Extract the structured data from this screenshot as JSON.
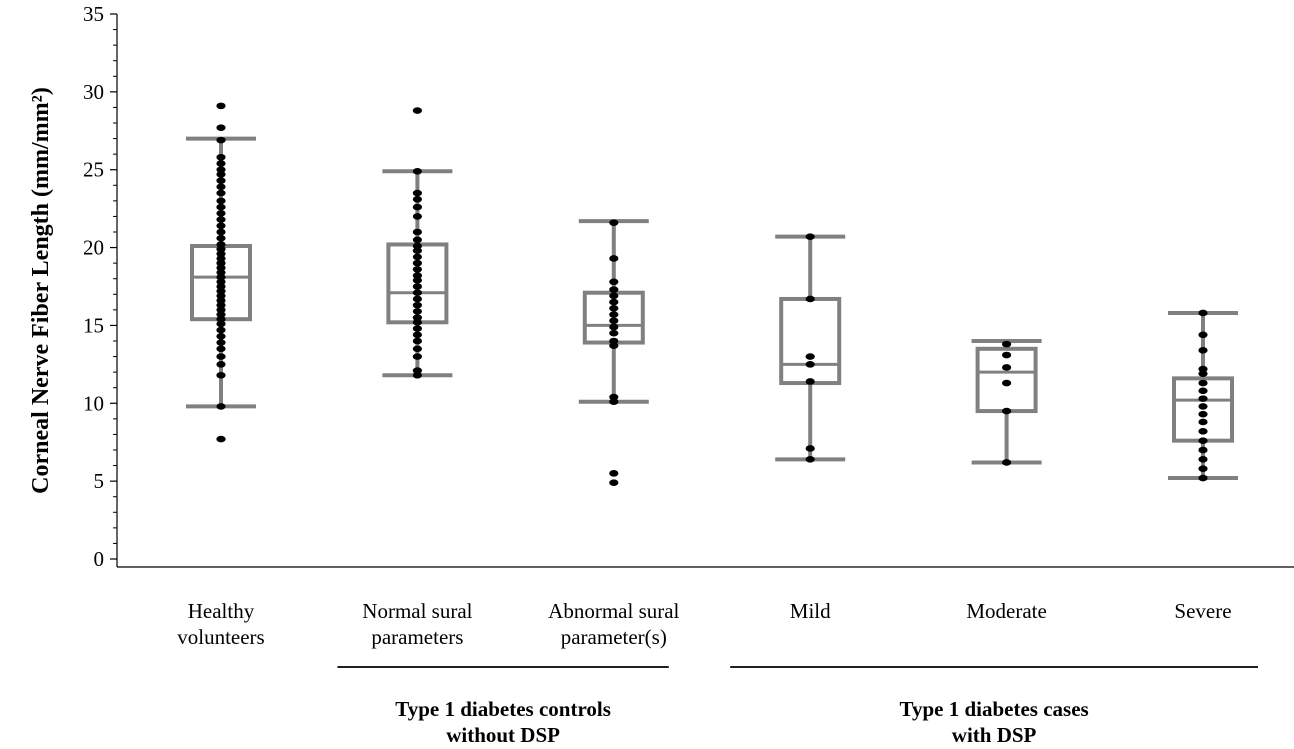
{
  "chart_data": {
    "type": "box",
    "ylabel": "Corneal Nerve Fiber Length (mm/mm²)",
    "ylim": [
      0,
      35
    ],
    "yticks": [
      "0",
      "5",
      "10",
      "15",
      "20",
      "25",
      "30",
      "35"
    ],
    "box_color": "#808080",
    "point_color": "#000000",
    "categories": [
      {
        "lines": [
          "Healthy",
          "volunteers"
        ]
      },
      {
        "lines": [
          "Normal sural",
          "parameters"
        ]
      },
      {
        "lines": [
          "Abnormal sural",
          "parameter(s)"
        ]
      },
      {
        "lines": [
          "Mild"
        ]
      },
      {
        "lines": [
          "Moderate"
        ]
      },
      {
        "lines": [
          "Severe"
        ]
      }
    ],
    "groups": [
      {
        "lines": [
          "Type 1 diabetes controls",
          "without DSP"
        ],
        "categories": [
          1,
          2
        ]
      },
      {
        "lines": [
          "Type 1 diabetes cases",
          "with DSP"
        ],
        "categories": [
          3,
          4,
          5
        ]
      }
    ],
    "boxes": [
      {
        "whisker_low": 9.8,
        "q1": 15.4,
        "median": 18.1,
        "q3": 20.1,
        "whisker_high": 27.0
      },
      {
        "whisker_low": 11.8,
        "q1": 15.2,
        "median": 17.1,
        "q3": 20.2,
        "whisker_high": 24.9
      },
      {
        "whisker_low": 10.1,
        "q1": 13.9,
        "median": 15.0,
        "q3": 17.1,
        "whisker_high": 21.7
      },
      {
        "whisker_low": 6.4,
        "q1": 11.3,
        "median": 12.5,
        "q3": 16.7,
        "whisker_high": 20.7
      },
      {
        "whisker_low": 6.2,
        "q1": 9.5,
        "median": 12.0,
        "q3": 13.5,
        "whisker_high": 14.0
      },
      {
        "whisker_low": 5.2,
        "q1": 7.6,
        "median": 10.2,
        "q3": 11.6,
        "whisker_high": 15.8
      }
    ],
    "points": [
      [
        29.1,
        27.7,
        26.9,
        25.8,
        25.4,
        25.0,
        24.7,
        24.3,
        23.9,
        23.5,
        23.0,
        22.6,
        22.2,
        21.8,
        21.4,
        21.0,
        20.6,
        20.2,
        19.9,
        19.6,
        19.3,
        19.0,
        18.7,
        18.4,
        18.1,
        17.8,
        17.5,
        17.2,
        16.9,
        16.6,
        16.3,
        16.0,
        15.7,
        15.4,
        15.1,
        14.7,
        14.3,
        13.9,
        13.5,
        13.0,
        12.5,
        11.8,
        9.8,
        7.7
      ],
      [
        28.8,
        24.9,
        23.5,
        23.1,
        22.6,
        22.0,
        21.0,
        20.5,
        20.1,
        19.8,
        19.4,
        19.0,
        18.6,
        18.2,
        17.9,
        17.5,
        17.1,
        16.7,
        16.3,
        15.9,
        15.5,
        15.2,
        14.8,
        14.4,
        14.0,
        13.5,
        13.0,
        12.1,
        11.8
      ],
      [
        21.6,
        19.3,
        17.8,
        17.3,
        16.9,
        16.5,
        16.1,
        15.7,
        15.3,
        14.9,
        14.5,
        14.0,
        13.7,
        10.4,
        10.1,
        5.5,
        4.9
      ],
      [
        20.7,
        16.7,
        13.0,
        12.5,
        11.4,
        7.1,
        6.4
      ],
      [
        13.8,
        13.1,
        12.3,
        11.3,
        9.5,
        6.2
      ],
      [
        15.8,
        14.4,
        13.4,
        12.2,
        11.9,
        11.3,
        10.8,
        10.3,
        9.8,
        9.3,
        8.8,
        8.2,
        7.6,
        7.0,
        6.4,
        5.8,
        5.2
      ]
    ]
  }
}
